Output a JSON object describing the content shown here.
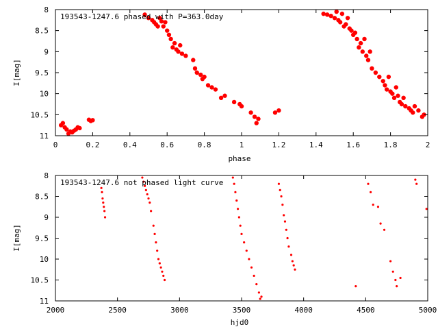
{
  "chart_data": [
    {
      "type": "scatter",
      "title": "193543-1247.6 phased with P=363.0day",
      "xlabel": "phase",
      "ylabel": "I[mag]",
      "xlim": [
        0,
        2
      ],
      "ylim": [
        11,
        8
      ],
      "y_inverted": true,
      "grid": false,
      "xticks": [
        0,
        0.2,
        0.4,
        0.6,
        0.8,
        1,
        1.2,
        1.4,
        1.6,
        1.8,
        2
      ],
      "xtick_labels": [
        "0",
        "0.2",
        "0.4",
        "0.6",
        "0.8",
        "1",
        "1.2",
        "1.4",
        "1.6",
        "1.8",
        "2"
      ],
      "yticks": [
        8,
        8.5,
        9,
        9.5,
        10,
        10.5,
        11
      ],
      "ytick_labels": [
        "8",
        "8.5",
        "9",
        "9.5",
        "10",
        "10.5",
        "11"
      ],
      "marker_color": "#ff0000",
      "marker": "filled-octagon",
      "series": [
        {
          "x": [
            0.03,
            0.04,
            0.05,
            0.06,
            0.07,
            0.08,
            0.09,
            0.1,
            0.11,
            0.12,
            0.13,
            0.18,
            0.19,
            0.2,
            0.48,
            0.5,
            0.52,
            0.53,
            0.54,
            0.55,
            0.56,
            0.57,
            0.58,
            0.59,
            0.6,
            0.61,
            0.62,
            0.63,
            0.64,
            0.65,
            0.66,
            0.67,
            0.68,
            0.7,
            0.74,
            0.75,
            0.76,
            0.78,
            0.79,
            0.8,
            0.82,
            0.84,
            0.86,
            0.89,
            0.91,
            0.96,
            0.99,
            1.0,
            1.05,
            1.07,
            1.08,
            1.09,
            1.18,
            1.2,
            1.44,
            1.46,
            1.48,
            1.5,
            1.51,
            1.52,
            1.53,
            1.54,
            1.55,
            1.56,
            1.57,
            1.58,
            1.59,
            1.6,
            1.61,
            1.62,
            1.63,
            1.64,
            1.65,
            1.66,
            1.67,
            1.68,
            1.69,
            1.7,
            1.72,
            1.74,
            1.76,
            1.77,
            1.78,
            1.79,
            1.8,
            1.81,
            1.82,
            1.83,
            1.84,
            1.85,
            1.86,
            1.87,
            1.88,
            1.9,
            1.91,
            1.92,
            1.93,
            1.95,
            1.97,
            1.98
          ],
          "y": [
            10.75,
            10.7,
            10.8,
            10.85,
            10.95,
            10.9,
            10.92,
            10.88,
            10.85,
            10.8,
            10.82,
            10.62,
            10.65,
            10.63,
            8.12,
            8.2,
            8.25,
            8.3,
            8.35,
            8.4,
            8.2,
            8.28,
            8.4,
            8.3,
            8.5,
            8.6,
            8.7,
            8.9,
            8.8,
            8.95,
            9.0,
            8.85,
            9.05,
            9.1,
            9.2,
            9.4,
            9.5,
            9.55,
            9.65,
            9.6,
            9.8,
            9.85,
            9.9,
            10.1,
            10.05,
            10.2,
            10.25,
            10.3,
            10.45,
            10.55,
            10.7,
            10.6,
            10.45,
            10.4,
            8.1,
            8.12,
            8.15,
            8.2,
            8.05,
            8.25,
            8.3,
            8.1,
            8.4,
            8.35,
            8.2,
            8.45,
            8.5,
            8.6,
            8.55,
            8.7,
            8.9,
            8.8,
            9.0,
            8.7,
            9.1,
            9.2,
            9.0,
            9.4,
            9.5,
            9.6,
            9.7,
            9.8,
            9.9,
            9.6,
            9.95,
            10.0,
            10.1,
            9.85,
            10.05,
            10.2,
            10.25,
            10.1,
            10.3,
            10.35,
            10.4,
            10.45,
            10.3,
            10.4,
            10.55,
            10.5
          ]
        }
      ]
    },
    {
      "type": "scatter",
      "title": "193543-1247.6 not phased light curve",
      "xlabel": "hjd0",
      "ylabel": "I[mag]",
      "xlim": [
        2000,
        5000
      ],
      "ylim": [
        11,
        8
      ],
      "y_inverted": true,
      "grid": false,
      "xticks": [
        2000,
        2500,
        3000,
        3500,
        4000,
        4500,
        5000
      ],
      "xtick_labels": [
        "2000",
        "2500",
        "3000",
        "3500",
        "4000",
        "4500",
        "5000"
      ],
      "yticks": [
        8,
        8.5,
        9,
        9.5,
        10,
        10.5,
        11
      ],
      "ytick_labels": [
        "8",
        "8.5",
        "9",
        "9.5",
        "10",
        "10.5",
        "11"
      ],
      "marker_color": "#ff0000",
      "marker": "small-dot",
      "series": [
        {
          "x": [
            2370,
            2375,
            2380,
            2385,
            2390,
            2395,
            2400,
            2700,
            2710,
            2720,
            2730,
            2740,
            2750,
            2760,
            2770,
            2790,
            2800,
            2810,
            2820,
            2830,
            2840,
            2850,
            2860,
            2870,
            2880,
            3430,
            3440,
            3450,
            3460,
            3470,
            3480,
            3490,
            3500,
            3520,
            3540,
            3560,
            3580,
            3600,
            3620,
            3640,
            3650,
            3660,
            3800,
            3810,
            3820,
            3830,
            3840,
            3850,
            3860,
            3870,
            3880,
            3900,
            3910,
            3920,
            3930,
            4420,
            4520,
            4540,
            4560,
            4600,
            4620,
            4650,
            4700,
            4720,
            4740,
            4750,
            4780,
            4900,
            4910,
            4990
          ],
          "y": [
            8.3,
            8.4,
            8.55,
            8.65,
            8.75,
            8.85,
            9.0,
            8.05,
            8.15,
            8.25,
            8.35,
            8.45,
            8.55,
            8.65,
            8.85,
            9.2,
            9.4,
            9.6,
            9.8,
            10.0,
            10.1,
            10.2,
            10.3,
            10.4,
            10.5,
            8.05,
            8.2,
            8.4,
            8.6,
            8.8,
            9.0,
            9.2,
            9.4,
            9.6,
            9.8,
            10.0,
            10.2,
            10.4,
            10.6,
            10.8,
            10.95,
            10.9,
            8.2,
            8.35,
            8.5,
            8.7,
            8.95,
            9.1,
            9.3,
            9.5,
            9.7,
            9.9,
            10.05,
            10.15,
            10.25,
            10.65,
            8.2,
            8.4,
            8.7,
            8.75,
            9.15,
            9.3,
            10.05,
            10.3,
            10.5,
            10.65,
            10.45,
            8.1,
            8.2,
            8.8
          ]
        }
      ]
    }
  ]
}
